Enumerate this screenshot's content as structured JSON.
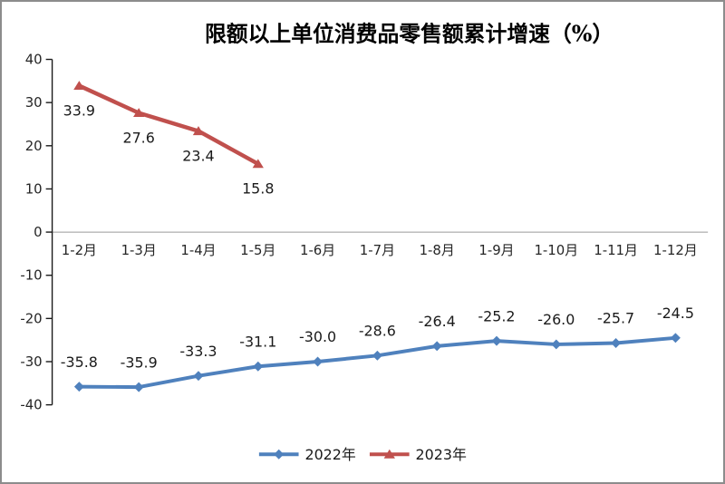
{
  "chart_data": {
    "type": "line",
    "title": "限额以上单位消费品零售额累计增速（%）",
    "categories": [
      "1-2月",
      "1-3月",
      "1-4月",
      "1-5月",
      "1-6月",
      "1-7月",
      "1-8月",
      "1-9月",
      "1-10月",
      "1-11月",
      "1-12月"
    ],
    "series": [
      {
        "name": "2022年",
        "color": "#4F81BD",
        "marker": "diamond",
        "label_position": "above",
        "values": [
          -35.8,
          -35.9,
          -33.3,
          -31.1,
          -30.0,
          -28.6,
          -26.4,
          -25.2,
          -26.0,
          -25.7,
          -24.5
        ]
      },
      {
        "name": "2023年",
        "color": "#C0504D",
        "marker": "triangle",
        "label_position": "below",
        "values": [
          33.9,
          27.6,
          23.4,
          15.8
        ]
      }
    ],
    "xlabel": "",
    "ylabel": "",
    "ylim": [
      -40,
      40
    ],
    "y_ticks": [
      40,
      30,
      20,
      10,
      0,
      -10,
      -20,
      -30,
      -40
    ],
    "grid": "zero-line-only",
    "legend_position": "bottom",
    "data_label_decimals": 1,
    "colors": {
      "axis": "#1a1a1a",
      "zero_line": "#9a9a9a",
      "labels": "#1a1a1a",
      "border": "#8c8c8c",
      "background": "#ffffff"
    }
  }
}
